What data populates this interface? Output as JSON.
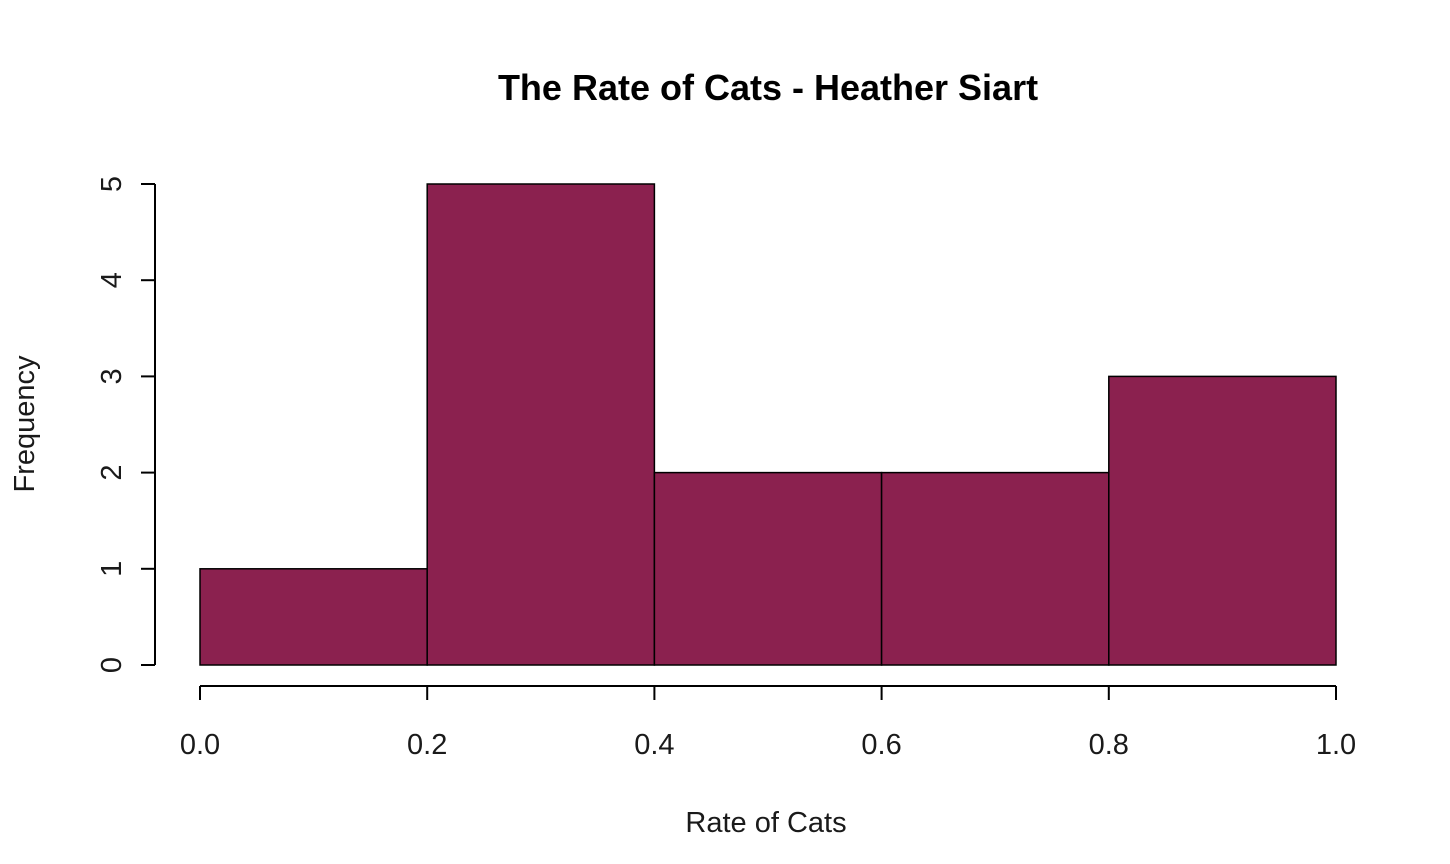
{
  "chart_data": {
    "type": "bar",
    "title": "The Rate of Cats - Heather Siart",
    "xlabel": "Rate of Cats",
    "ylabel": "Frequency",
    "bins": [
      {
        "from": 0.0,
        "to": 0.2,
        "count": 1
      },
      {
        "from": 0.2,
        "to": 0.4,
        "count": 5
      },
      {
        "from": 0.4,
        "to": 0.6,
        "count": 2
      },
      {
        "from": 0.6,
        "to": 0.8,
        "count": 2
      },
      {
        "from": 0.8,
        "to": 1.0,
        "count": 3
      }
    ],
    "xticks": [
      "0.0",
      "0.2",
      "0.4",
      "0.6",
      "0.8",
      "1.0"
    ],
    "yticks": [
      "0",
      "1",
      "2",
      "3",
      "4",
      "5"
    ],
    "xlim": [
      0.0,
      1.0
    ],
    "ylim": [
      0,
      5
    ],
    "bar_color": "#8b214f",
    "grid": false,
    "legend": "none"
  }
}
